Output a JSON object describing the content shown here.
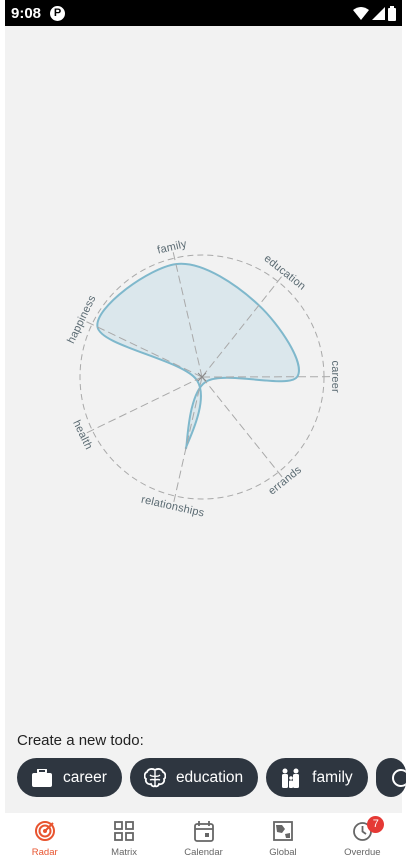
{
  "status_bar": {
    "time": "9:08",
    "app_icon_letter": "P"
  },
  "radar": {
    "axes": [
      {
        "name": "family",
        "value": 0.95
      },
      {
        "name": "education",
        "value": 0.75
      },
      {
        "name": "career",
        "value": 0.78
      },
      {
        "name": "errands",
        "value": 0.05
      },
      {
        "name": "relationships",
        "value": 0.6
      },
      {
        "name": "health",
        "value": 0.05
      },
      {
        "name": "happiness",
        "value": 0.95
      }
    ],
    "fill_color": "#dbe7ec",
    "stroke_color": "#7fb8cc"
  },
  "create": {
    "label": "Create a new todo:",
    "chips": [
      {
        "label": "career",
        "icon": "briefcase-icon"
      },
      {
        "label": "education",
        "icon": "brain-icon"
      },
      {
        "label": "family",
        "icon": "family-icon"
      },
      {
        "label": "",
        "icon": "partial-chip-icon"
      }
    ]
  },
  "nav": {
    "items": [
      {
        "label": "Radar",
        "icon": "radar-icon",
        "active": true
      },
      {
        "label": "Matrix",
        "icon": "matrix-icon"
      },
      {
        "label": "Calendar",
        "icon": "calendar-icon"
      },
      {
        "label": "Global",
        "icon": "global-icon"
      },
      {
        "label": "Overdue",
        "icon": "clock-icon",
        "badge": "7"
      }
    ],
    "active_color": "#e8542f"
  }
}
